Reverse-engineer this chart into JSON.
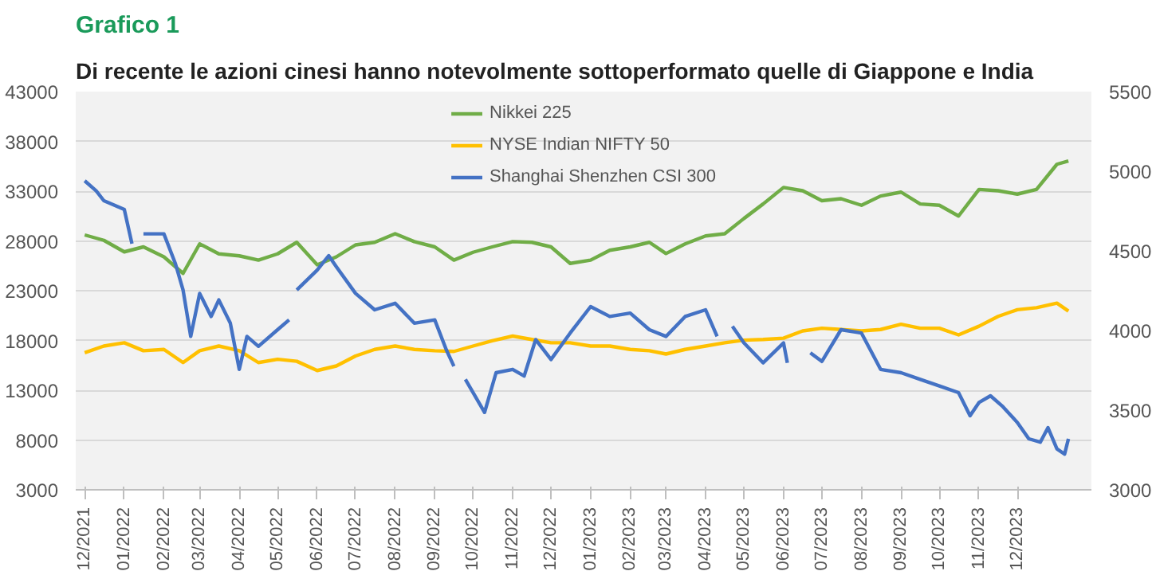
{
  "chart_data": {
    "type": "line",
    "title": "Grafico 1",
    "subtitle": "Di recente le azioni cinesi hanno notevolmente sottoperformato quelle di Giappone e India",
    "x": [
      "2021-12-01",
      "2021-12-16",
      "2022-01-01",
      "2022-01-16",
      "2022-02-01",
      "2022-02-16",
      "2022-03-01",
      "2022-03-16",
      "2022-04-01",
      "2022-04-16",
      "2022-05-01",
      "2022-05-16",
      "2022-06-01",
      "2022-06-16",
      "2022-07-01",
      "2022-07-16",
      "2022-08-01",
      "2022-08-16",
      "2022-09-01",
      "2022-09-16",
      "2022-10-01",
      "2022-10-16",
      "2022-11-01",
      "2022-11-16",
      "2022-12-01",
      "2022-12-16",
      "2023-01-01",
      "2023-01-16",
      "2023-02-01",
      "2023-02-16",
      "2023-03-01",
      "2023-03-16",
      "2023-04-01",
      "2023-04-16",
      "2023-05-01",
      "2023-05-16",
      "2023-06-01",
      "2023-06-16",
      "2023-07-01",
      "2023-07-16",
      "2023-08-01",
      "2023-08-16",
      "2023-09-01",
      "2023-09-16",
      "2023-10-01",
      "2023-10-16",
      "2023-11-01",
      "2023-11-16",
      "2023-12-01",
      "2023-12-16",
      "2024-01-01",
      "2024-01-10"
    ],
    "series": [
      {
        "name": "Nikkei 225",
        "color": "#70ad47",
        "values": [
          28600,
          28060,
          26900,
          27400,
          26400,
          24740,
          27700,
          26700,
          26500,
          26070,
          26700,
          27860,
          25600,
          26400,
          27600,
          27860,
          28720,
          27930,
          27400,
          26070,
          26860,
          27400,
          27930,
          27860,
          27400,
          25740,
          26070,
          27060,
          27400,
          27860,
          26730,
          27700,
          28500,
          28720,
          30250,
          31710,
          33370,
          33040,
          32040,
          32240,
          31580,
          32510,
          32900,
          31710,
          31580,
          30500,
          33170,
          33040,
          32700,
          33170,
          35700,
          36030
        ]
      },
      {
        "name": "NYSE Indian NIFTY 50",
        "color": "#ffc000",
        "values": [
          16770,
          17440,
          17770,
          16970,
          17100,
          15780,
          16970,
          17440,
          16970,
          15780,
          16110,
          15910,
          14980,
          15440,
          16440,
          17100,
          17440,
          17100,
          16970,
          16900,
          17440,
          17970,
          18440,
          18100,
          17770,
          17770,
          17440,
          17440,
          17100,
          16970,
          16640,
          17100,
          17440,
          17770,
          18030,
          18100,
          18230,
          18960,
          19230,
          19100,
          18960,
          19100,
          19630,
          19230,
          19230,
          18560,
          19430,
          20420,
          21090,
          21290,
          21750,
          20950
        ]
      },
      {
        "name": "Shanghai Shenzhen CSI 300",
        "color": "#4472c4",
        "axis": "y2",
        "x": [
          "2021-12-01",
          "2021-12-10",
          "2021-12-16",
          "2022-01-01",
          "2022-01-07",
          "2022-01-10",
          "2022-01-16",
          "2022-02-01",
          "2022-02-10",
          "2022-02-16",
          "2022-02-22",
          "2022-03-01",
          "2022-03-10",
          "2022-03-16",
          "2022-03-25",
          "2022-04-01",
          "2022-04-07",
          "2022-04-16",
          "2022-05-01",
          "2022-05-10",
          "2022-05-13",
          "2022-05-16",
          "2022-06-01",
          "2022-06-10",
          "2022-06-16",
          "2022-07-01",
          "2022-07-16",
          "2022-08-01",
          "2022-08-16",
          "2022-09-01",
          "2022-09-10",
          "2022-09-16",
          "2022-09-20",
          "2022-09-25",
          "2022-10-10",
          "2022-10-19",
          "2022-11-01",
          "2022-11-10",
          "2022-11-19",
          "2022-12-01",
          "2022-12-16",
          "2023-01-01",
          "2023-01-16",
          "2023-02-01",
          "2023-02-16",
          "2023-03-01",
          "2023-03-16",
          "2023-04-01",
          "2023-04-10",
          "2023-04-13",
          "2023-04-22",
          "2023-05-01",
          "2023-05-16",
          "2023-06-01",
          "2023-06-04",
          "2023-06-10",
          "2023-06-22",
          "2023-07-01",
          "2023-07-16",
          "2023-08-01",
          "2023-08-16",
          "2023-09-01",
          "2023-09-16",
          "2023-10-01",
          "2023-10-16",
          "2023-10-25",
          "2023-11-01",
          "2023-11-10",
          "2023-11-19",
          "2023-12-01",
          "2023-12-10",
          "2023-12-19",
          "2023-12-25",
          "2024-01-01",
          "2024-01-07",
          "2024-01-10"
        ],
        "values": [
          4940,
          4877,
          4815,
          4760,
          4545,
          null,
          4607,
          4607,
          4420,
          4254,
          3963,
          4233,
          4088,
          4192,
          4046,
          3756,
          3963,
          3901,
          4005,
          4067,
          null,
          4254,
          4379,
          4470,
          4400,
          4233,
          4130,
          4171,
          4046,
          4067,
          3880,
          3776,
          null,
          3693,
          3486,
          3735,
          3756,
          3714,
          3943,
          3818,
          3984,
          4150,
          4088,
          4109,
          4005,
          3963,
          4088,
          4130,
          3963,
          null,
          4026,
          3922,
          3797,
          3922,
          3797,
          null,
          3860,
          3806,
          4005,
          3984,
          3756,
          3735,
          3693,
          3652,
          3610,
          3465,
          3548,
          3590,
          3527,
          3423,
          3320,
          3299,
          3390,
          3257,
          3224,
          3320
        ]
      }
    ],
    "xlim": [
      "2021-11-24",
      "2024-01-28"
    ],
    "xticks": [
      {
        "value": "2021-12-01",
        "label": "12/2021"
      },
      {
        "value": "2022-01-01",
        "label": "01/2022"
      },
      {
        "value": "2022-02-01",
        "label": "02/2022"
      },
      {
        "value": "2022-03-01",
        "label": "03/2022"
      },
      {
        "value": "2022-04-01",
        "label": "04/2022"
      },
      {
        "value": "2022-05-01",
        "label": "05/2022"
      },
      {
        "value": "2022-06-01",
        "label": "06/2022"
      },
      {
        "value": "2022-07-01",
        "label": "07/2022"
      },
      {
        "value": "2022-08-01",
        "label": "08/2022"
      },
      {
        "value": "2022-09-01",
        "label": "09/2022"
      },
      {
        "value": "2022-10-01",
        "label": "10/2022"
      },
      {
        "value": "2022-11-01",
        "label": "11/2022"
      },
      {
        "value": "2022-12-01",
        "label": "12/2022"
      },
      {
        "value": "2023-01-01",
        "label": "01/2023"
      },
      {
        "value": "2023-02-01",
        "label": "02/2023"
      },
      {
        "value": "2023-03-01",
        "label": "03/2023"
      },
      {
        "value": "2023-04-01",
        "label": "04/2023"
      },
      {
        "value": "2023-05-01",
        "label": "05/2023"
      },
      {
        "value": "2023-06-01",
        "label": "06/2023"
      },
      {
        "value": "2023-07-01",
        "label": "07/2023"
      },
      {
        "value": "2023-08-01",
        "label": "08/2023"
      },
      {
        "value": "2023-09-01",
        "label": "09/2023"
      },
      {
        "value": "2023-10-01",
        "label": "10/2023"
      },
      {
        "value": "2023-11-01",
        "label": "11/2023"
      },
      {
        "value": "2023-12-01",
        "label": "12/2023"
      }
    ],
    "ylim": [
      3000,
      43000
    ],
    "yticks": [
      3000,
      8000,
      13000,
      18000,
      23000,
      28000,
      33000,
      38000,
      43000
    ],
    "y2lim": [
      3000,
      5500
    ],
    "y2ticks": [
      3000,
      3500,
      4000,
      4500,
      5000,
      5500
    ],
    "grid": "y",
    "legend": "top"
  }
}
